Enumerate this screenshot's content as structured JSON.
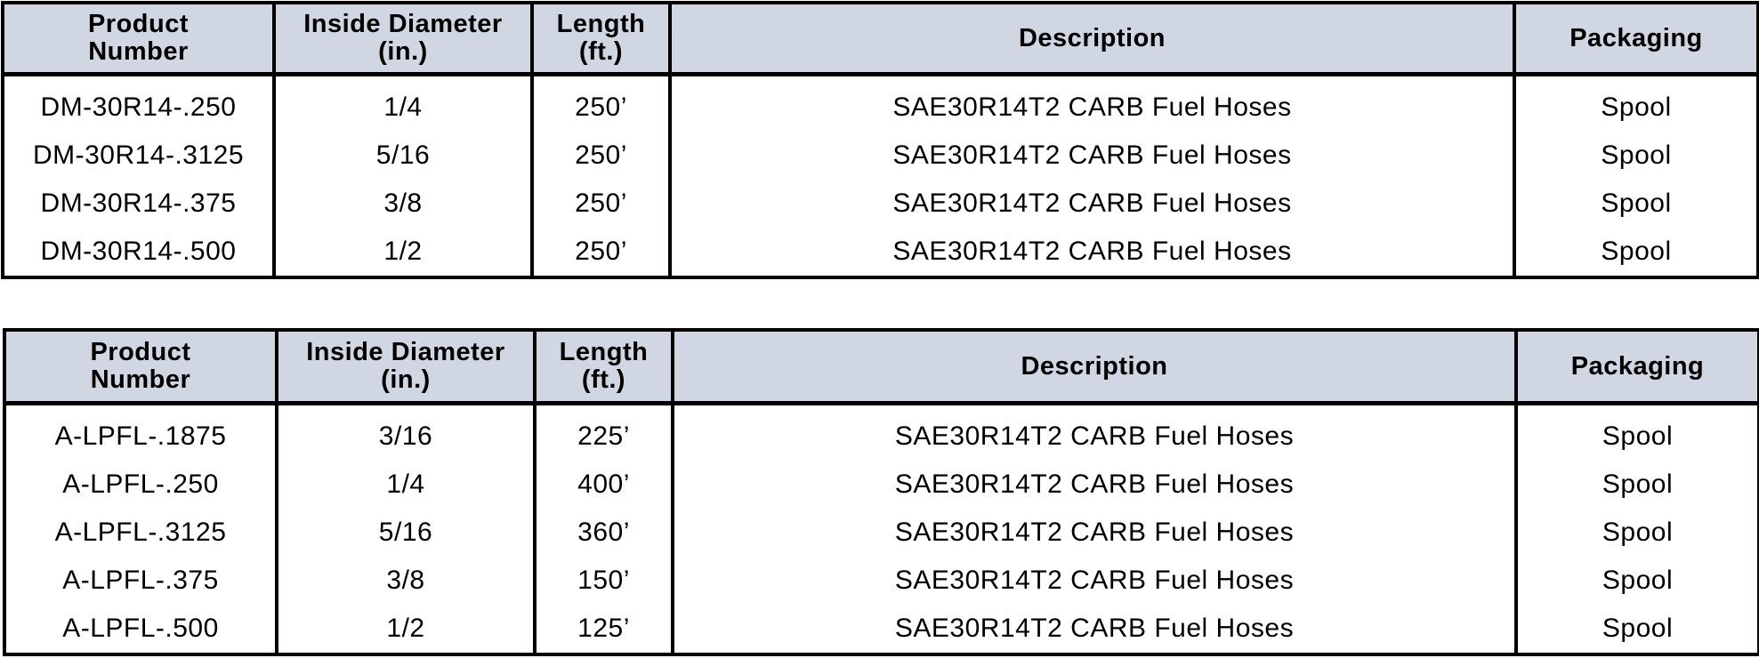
{
  "tables": [
    {
      "headers": [
        [
          "Product",
          "Number"
        ],
        [
          "Inside Diameter",
          "(in.)"
        ],
        [
          "Length",
          "(ft.)"
        ],
        [
          "Description"
        ],
        [
          "Packaging"
        ]
      ],
      "rows": [
        [
          "DM-30R14-.250",
          "1/4",
          "250’",
          "SAE30R14T2 CARB Fuel Hoses",
          "Spool"
        ],
        [
          "DM-30R14-.3125",
          "5/16",
          "250’",
          "SAE30R14T2 CARB Fuel Hoses",
          "Spool"
        ],
        [
          "DM-30R14-.375",
          "3/8",
          "250’",
          "SAE30R14T2 CARB Fuel Hoses",
          "Spool"
        ],
        [
          "DM-30R14-.500",
          "1/2",
          "250’",
          "SAE30R14T2 CARB Fuel Hoses",
          "Spool"
        ]
      ]
    },
    {
      "headers": [
        [
          "Product",
          "Number"
        ],
        [
          "Inside Diameter",
          "(in.)"
        ],
        [
          "Length",
          "(ft.)"
        ],
        [
          "Description"
        ],
        [
          "Packaging"
        ]
      ],
      "rows": [
        [
          "A-LPFL-.1875",
          "3/16",
          "225’",
          "SAE30R14T2 CARB Fuel Hoses",
          "Spool"
        ],
        [
          "A-LPFL-.250",
          "1/4",
          "400’",
          "SAE30R14T2 CARB Fuel Hoses",
          "Spool"
        ],
        [
          "A-LPFL-.3125",
          "5/16",
          "360’",
          "SAE30R14T2 CARB Fuel Hoses",
          "Spool"
        ],
        [
          "A-LPFL-.375",
          "3/8",
          "150’",
          "SAE30R14T2 CARB Fuel Hoses",
          "Spool"
        ],
        [
          "A-LPFL-.500",
          "1/2",
          "125’",
          "SAE30R14T2 CARB Fuel Hoses",
          "Spool"
        ]
      ]
    }
  ],
  "colors": {
    "header_bg": "#d0d6e2",
    "border": "#000000"
  }
}
